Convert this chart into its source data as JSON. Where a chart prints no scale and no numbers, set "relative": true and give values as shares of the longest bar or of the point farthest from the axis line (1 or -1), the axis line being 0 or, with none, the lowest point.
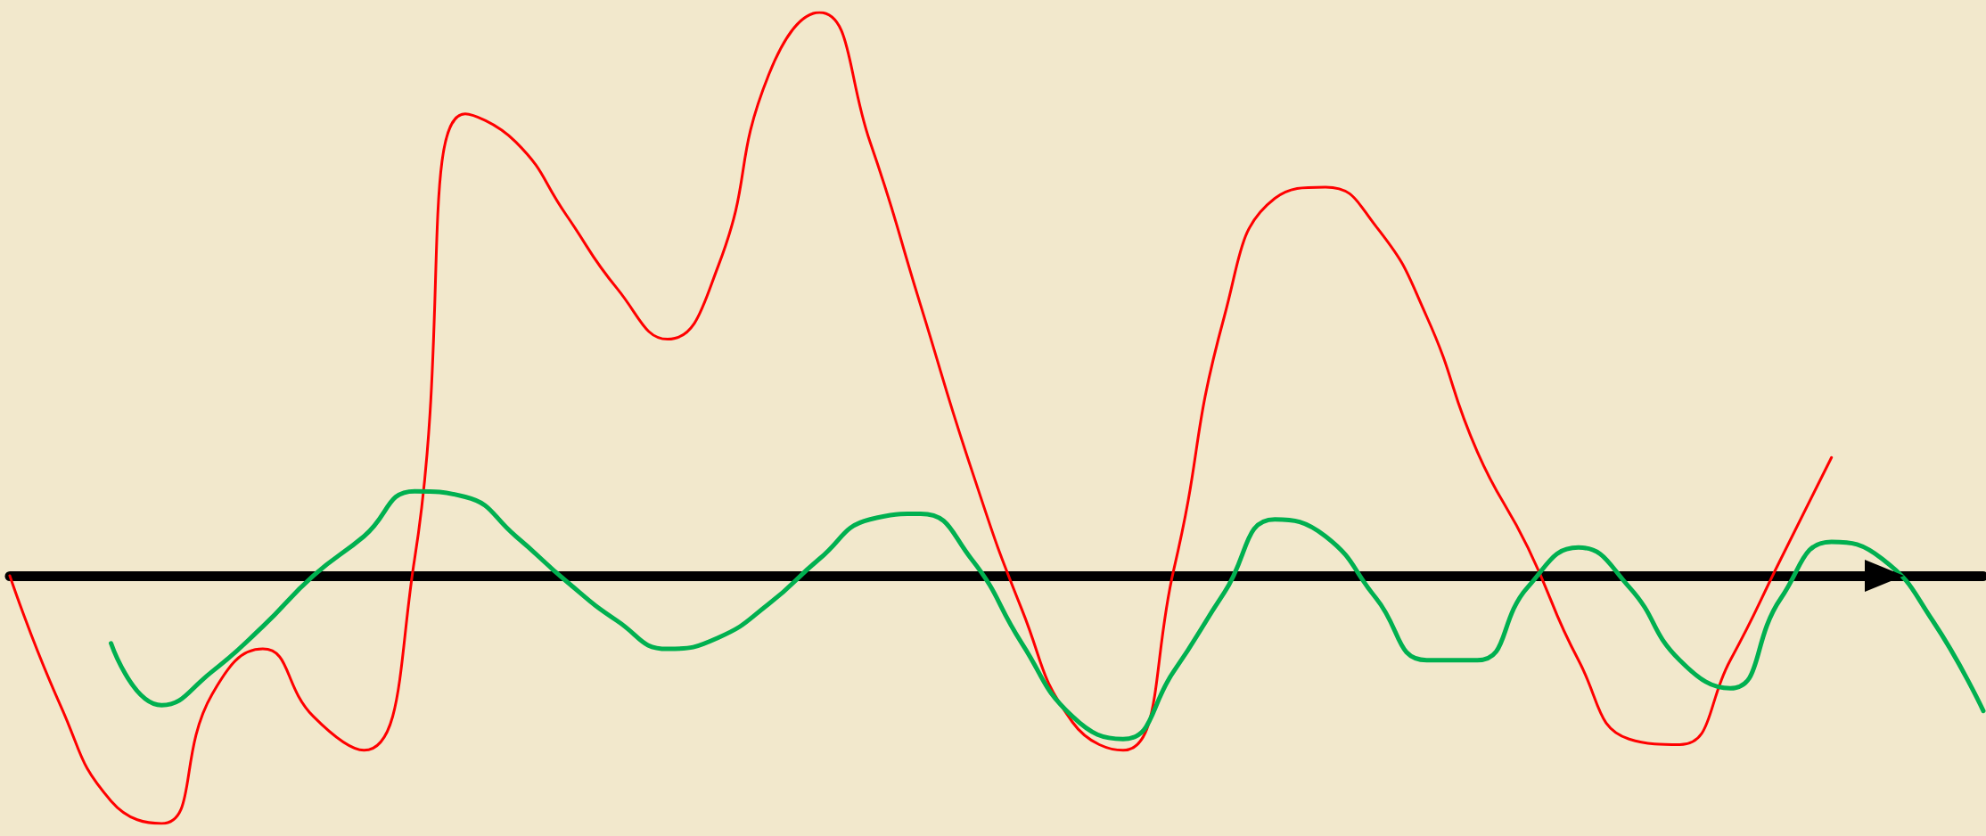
{
  "chart_data": {
    "type": "line",
    "relative": true,
    "marker": "none",
    "line_style": "solid",
    "categories": [
      null,
      null,
      null,
      null,
      null,
      null,
      null,
      null,
      null,
      null,
      null,
      null,
      null,
      null,
      null,
      null,
      null,
      null,
      null,
      null,
      null,
      null,
      null,
      null,
      null,
      null,
      null,
      null,
      null,
      null,
      null,
      null,
      null,
      null,
      null,
      null,
      null,
      null,
      null,
      null
    ],
    "series": [
      {
        "color": "#ff0000",
        "values": [
          0,
          -0.23,
          -0.4,
          -0.44,
          -0.21,
          -0.13,
          -0.25,
          -0.31,
          0.03,
          0.82,
          0.77,
          0.64,
          0.51,
          0.42,
          0.55,
          0.89,
          1,
          0.77,
          0.48,
          0.19,
          -0.06,
          -0.26,
          -0.31,
          0.01,
          0.46,
          0.67,
          0.69,
          0.62,
          0.46,
          0.22,
          0.05,
          -0.15,
          -0.29,
          -0.3,
          -0.15,
          0.03,
          0.21,
          null,
          null,
          null
        ]
      },
      {
        "color": "#00b050",
        "values": [
          null,
          null,
          -0.12,
          -0.23,
          -0.17,
          -0.09,
          0,
          0.07,
          0.15,
          0.14,
          0.07,
          -0.01,
          -0.08,
          -0.13,
          -0.11,
          -0.05,
          0.03,
          0.1,
          0.11,
          0.03,
          -0.12,
          -0.25,
          -0.29,
          -0.17,
          -0.03,
          0.1,
          0.07,
          -0.04,
          -0.15,
          -0.15,
          -0.02,
          0.05,
          -0.02,
          -0.15,
          -0.2,
          -0.04,
          0.06,
          0.03,
          -0.08,
          -0.24
        ]
      }
    ]
  }
}
